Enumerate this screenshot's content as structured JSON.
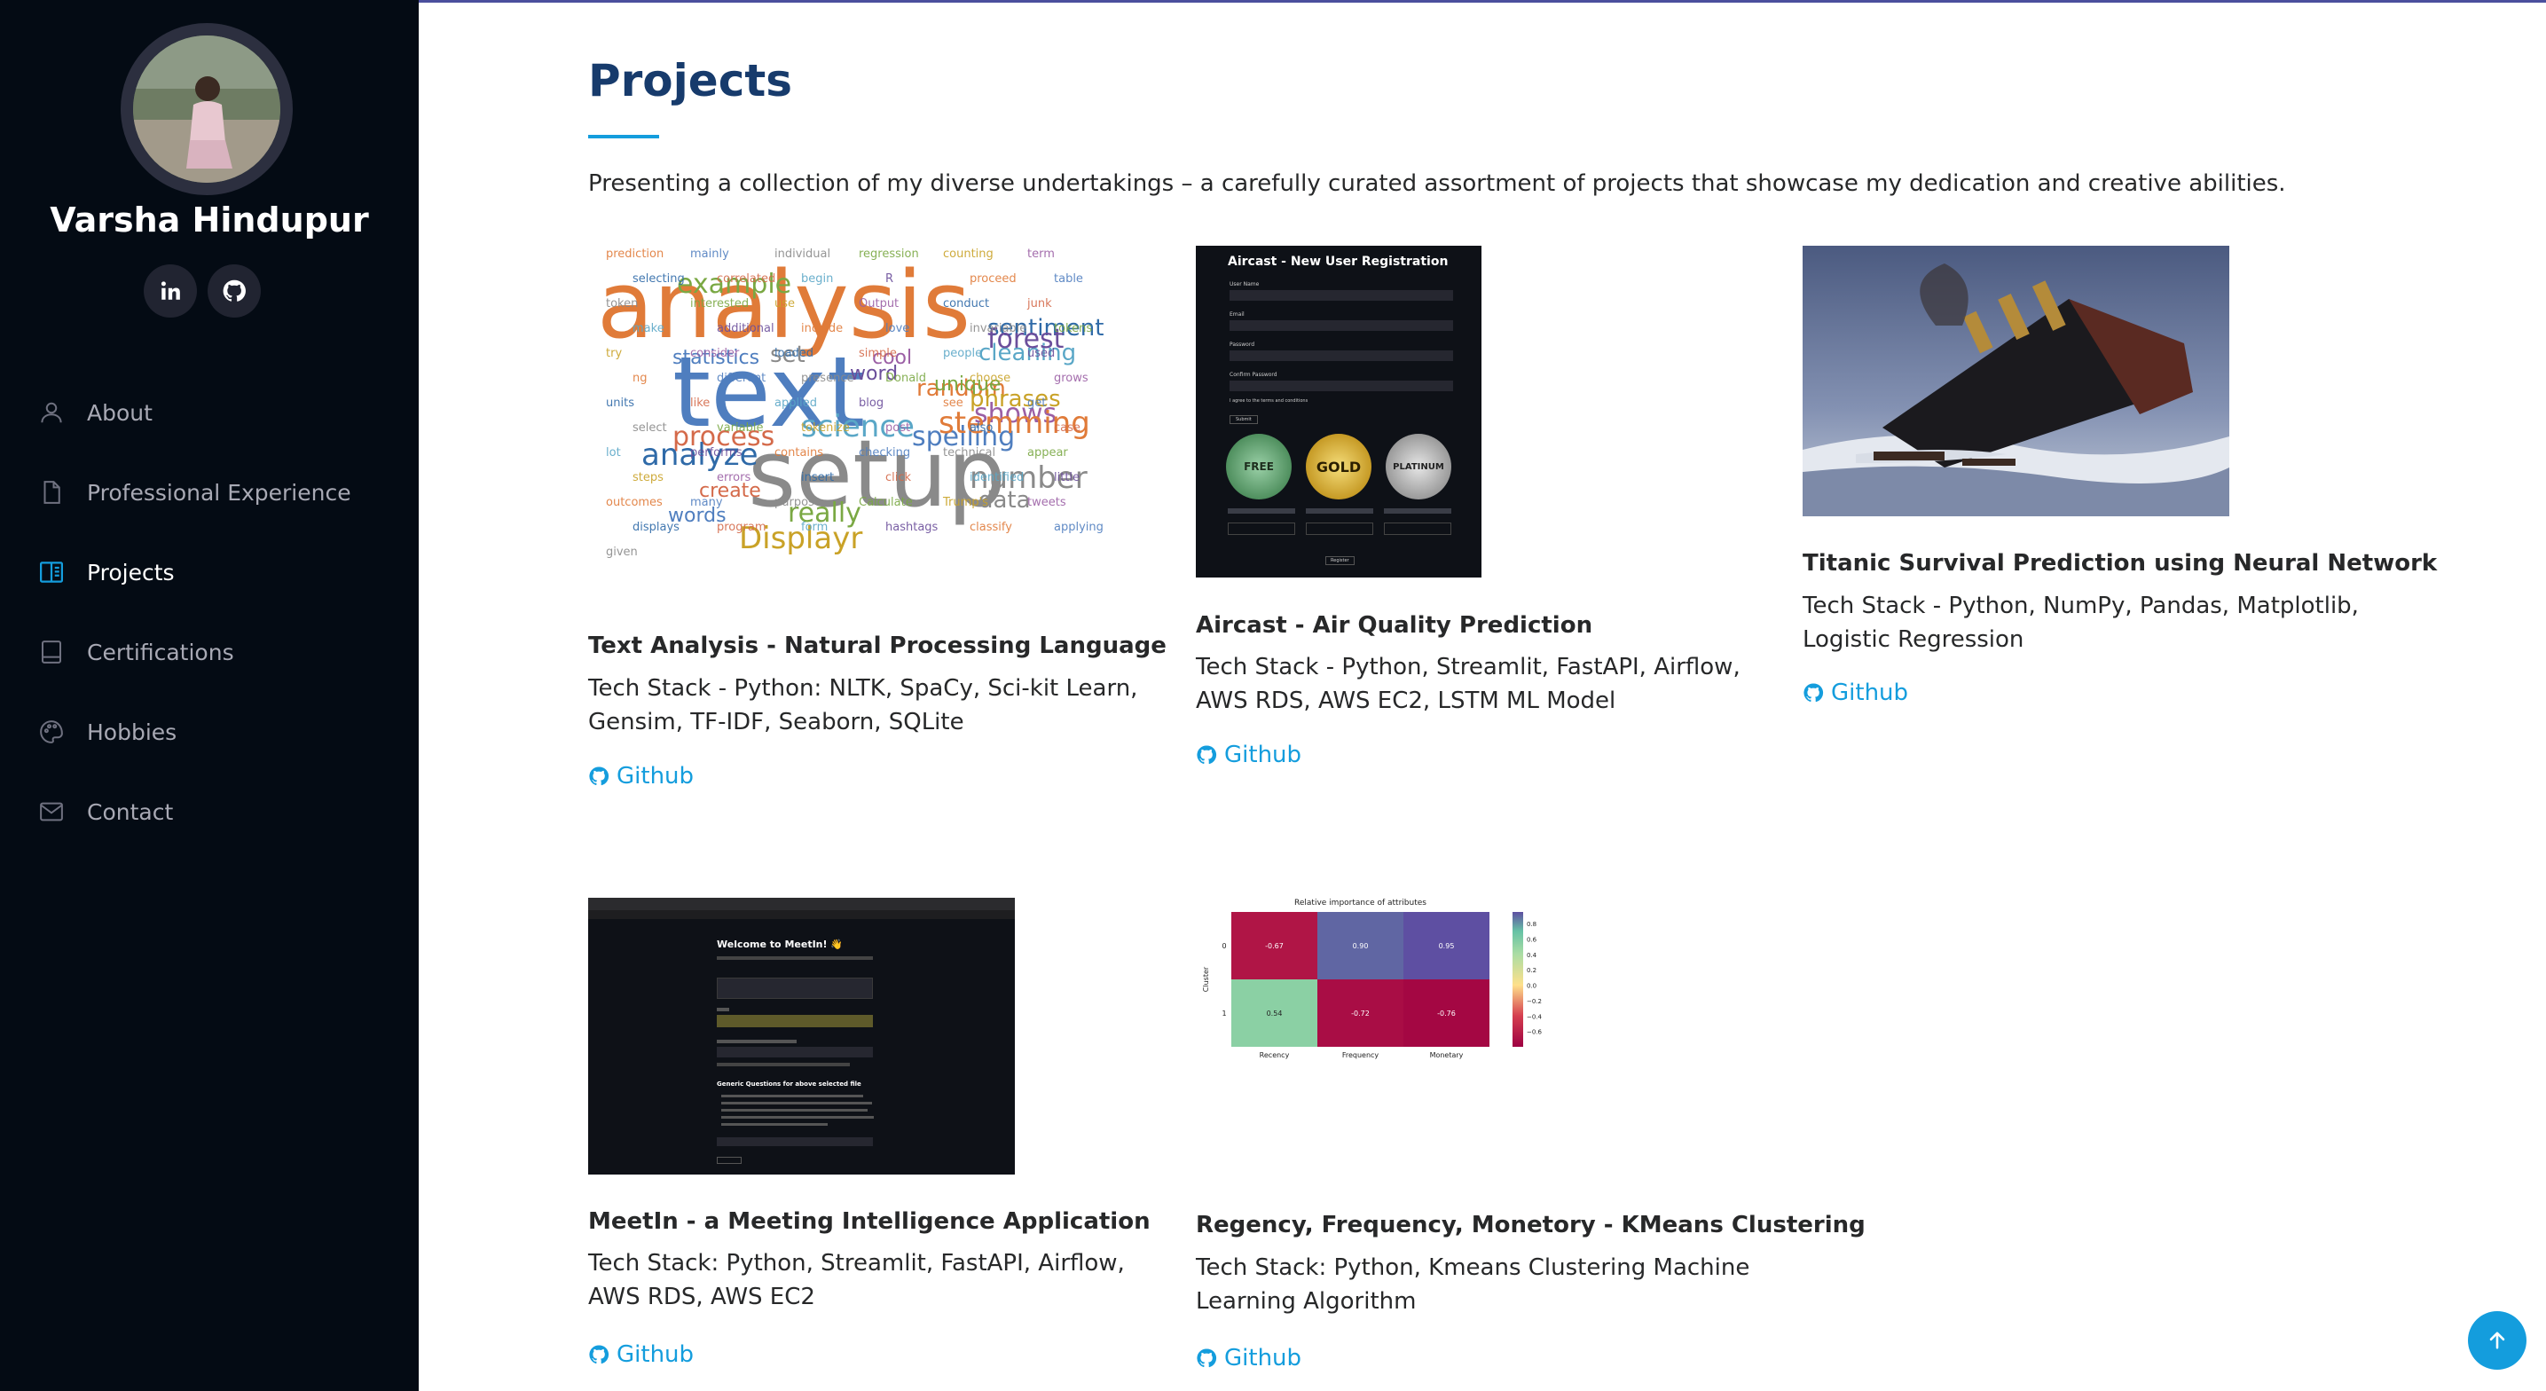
{
  "profile": {
    "name": "Varsha Hindupur"
  },
  "nav": {
    "items": [
      {
        "label": "About",
        "icon": "person-icon"
      },
      {
        "label": "Professional Experience",
        "icon": "file-icon"
      },
      {
        "label": "Projects",
        "icon": "book-icon",
        "active": true
      },
      {
        "label": "Certifications",
        "icon": "certificate-icon"
      },
      {
        "label": "Hobbies",
        "icon": "palette-icon"
      },
      {
        "label": "Contact",
        "icon": "envelope-icon"
      }
    ]
  },
  "section": {
    "title": "Projects",
    "intro": "Presenting a collection of my diverse undertakings – a carefully curated assortment of projects that showcase my dedication and creative abilities."
  },
  "projects": [
    {
      "title": "Text Analysis - Natural Processing Language",
      "stack": "Tech Stack - Python: NLTK, SpaCy, Sci-kit Learn, Gensim, TF-IDF, Seaborn, SQLite",
      "link": "Github",
      "wordcloud": {
        "big": [
          "analysis",
          "text",
          "setup"
        ],
        "medium": [
          "words",
          "data",
          "really",
          "Displayr",
          "cool",
          "sentiment",
          "process",
          "science",
          "word",
          "random",
          "spelling",
          "number",
          "unique",
          "phrases",
          "shows",
          "analyze",
          "create",
          "cleaning",
          "forest",
          "stemming",
          "statistics",
          "set",
          "example"
        ],
        "small": [
          "prediction",
          "mainly",
          "individual",
          "regression",
          "counting",
          "term",
          "selecting",
          "correlated",
          "begin",
          "R",
          "proceed",
          "table",
          "token",
          "interested",
          "use",
          "Output",
          "conduct",
          "junk",
          "make",
          "additional",
          "include",
          "love",
          "invariable",
          "tokens",
          "try",
          "consider",
          "loaded",
          "simple",
          "people",
          "used",
          "ng",
          "different",
          "presence",
          "Donald",
          "choose",
          "grows",
          "units",
          "like",
          "applied",
          "blog",
          "see",
          "get",
          "select",
          "variable",
          "tokenize",
          "post",
          "also",
          "case",
          "lot",
          "performs",
          "contains",
          "checking",
          "technical",
          "appear",
          "steps",
          "errors",
          "insert",
          "click",
          "identified",
          "little",
          "outcomes",
          "many",
          "purpose",
          "Calculate",
          "Trump's",
          "tweets",
          "displays",
          "program",
          "form",
          "hashtags",
          "classify",
          "applying",
          "given"
        ]
      }
    },
    {
      "title": "Aircast - Air Quality Prediction",
      "stack": "Tech Stack - Python, Streamlit, FastAPI, Airflow, AWS RDS, AWS EC2, LSTM ML Model",
      "link": "Github",
      "mock": {
        "heading": "Aircast - New User Registration",
        "fields": [
          "User Name",
          "Email",
          "Password",
          "Confirm Password"
        ],
        "checkbox": "I agree to the terms and conditions",
        "submit": "Submit",
        "tiers": [
          "FREE",
          "GOLD",
          "PLATINUM"
        ],
        "register": "Register"
      }
    },
    {
      "title": "Titanic Survival Prediction using Neural Network",
      "stack": "Tech Stack - Python, NumPy, Pandas, Matplotlib, Logistic Regression",
      "link": "Github"
    },
    {
      "title": "MeetIn - a Meeting Intelligence Application",
      "stack": "Tech Stack: Python, Streamlit, FastAPI, Airflow, AWS RDS, AWS EC2",
      "link": "Github",
      "mock": {
        "heading": "Welcome to MeetIn! 👋",
        "questions": "Generic Questions for above selected file"
      }
    },
    {
      "title": "Regency, Frequency, Monetory - KMeans Clustering",
      "stack": "Tech Stack: Python, Kmeans Clustering Machine Learning Algorithm",
      "link": "Github"
    }
  ],
  "chart_data": {
    "type": "heatmap",
    "title": "Relative importance of attributes",
    "x_categories": [
      "Recency",
      "Frequency",
      "Monetary"
    ],
    "y_categories": [
      "0",
      "1"
    ],
    "ylabel": "Cluster",
    "values": [
      [
        -0.67,
        0.9,
        0.95
      ],
      [
        0.54,
        -0.72,
        -0.76
      ]
    ],
    "colorbar_ticks": [
      "0.8",
      "0.6",
      "0.4",
      "0.2",
      "0.0",
      "−0.2",
      "−0.4",
      "−0.6"
    ],
    "vmin": -0.8,
    "vmax": 0.95
  }
}
